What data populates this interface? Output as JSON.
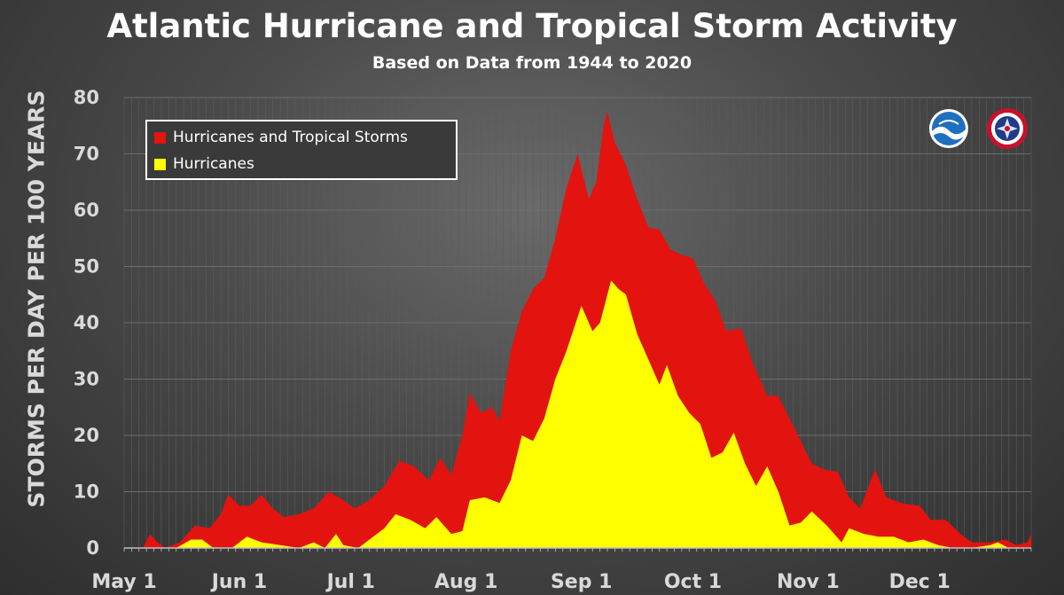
{
  "header": {
    "title": "Atlantic Hurricane and Tropical Storm Activity",
    "subtitle": "Based on Data from 1944 to 2020"
  },
  "logos": [
    {
      "name": "noaa-logo",
      "text": "NOAA",
      "colors": [
        "#1f6fbf",
        "#ffffff"
      ]
    },
    {
      "name": "nws-logo",
      "text": "NATIONAL WEATHER SERVICE",
      "colors": [
        "#c8102e",
        "#1f3c88"
      ]
    }
  ],
  "colors": {
    "hurricanes_and_tropical_storms": "#e3130f",
    "hurricanes": "#ffff00",
    "grid": "#6d6d6d",
    "tick_text": "#d9d9d9"
  },
  "chart_data": {
    "type": "area",
    "title": "Atlantic Hurricane and Tropical Storm Activity",
    "subtitle": "Based on Data from 1944 to 2020",
    "xlabel": "",
    "ylabel": "STORMS PER DAY PER 100 YEARS",
    "ylim": [
      0,
      80
    ],
    "yticks": [
      0,
      10,
      20,
      30,
      40,
      50,
      60,
      70,
      80
    ],
    "xlim": [
      "May 1",
      "Dec 31"
    ],
    "xticks": [
      {
        "label": "May 1",
        "date": "May 1"
      },
      {
        "label": "Jun 1",
        "date": "Jun 1"
      },
      {
        "label": "Jul 1",
        "date": "Jul 1"
      },
      {
        "label": "Aug 1",
        "date": "Aug 1"
      },
      {
        "label": "Sep 1",
        "date": "Sep 1"
      },
      {
        "label": "Oct 1",
        "date": "Oct 1"
      },
      {
        "label": "Nov 1",
        "date": "Nov 1"
      },
      {
        "label": "Dec 1",
        "date": "Dec 1"
      }
    ],
    "grid": true,
    "legend_position": "top-left",
    "series": [
      {
        "name": "Hurricanes and Tropical Storms",
        "color": "#e3130f",
        "points": [
          [
            "May 1",
            0
          ],
          [
            "May 6",
            0
          ],
          [
            "May 8",
            2.5
          ],
          [
            "May 10",
            1
          ],
          [
            "May 12",
            0
          ],
          [
            "May 16",
            1
          ],
          [
            "May 20",
            4
          ],
          [
            "May 24",
            3.5
          ],
          [
            "May 27",
            6
          ],
          [
            "May 29",
            9.5
          ],
          [
            "Jun 1",
            7.5
          ],
          [
            "Jun 4",
            7.5
          ],
          [
            "Jun 7",
            9.5
          ],
          [
            "Jun 10",
            7
          ],
          [
            "Jun 13",
            5.5
          ],
          [
            "Jun 17",
            6
          ],
          [
            "Jun 21",
            7
          ],
          [
            "Jun 25",
            10
          ],
          [
            "Jun 29",
            8.5
          ],
          [
            "Jul 2",
            7
          ],
          [
            "Jul 6",
            8.5
          ],
          [
            "Jul 10",
            11
          ],
          [
            "Jul 14",
            15.5
          ],
          [
            "Jul 18",
            14.5
          ],
          [
            "Jul 22",
            12
          ],
          [
            "Jul 25",
            16
          ],
          [
            "Jul 28",
            13
          ],
          [
            "Jul 31",
            20
          ],
          [
            "Aug 2",
            27.5
          ],
          [
            "Aug 5",
            24
          ],
          [
            "Aug 8",
            25
          ],
          [
            "Aug 10",
            22.5
          ],
          [
            "Aug 13",
            35
          ],
          [
            "Aug 16",
            42
          ],
          [
            "Aug 19",
            46
          ],
          [
            "Aug 22",
            48
          ],
          [
            "Aug 25",
            55
          ],
          [
            "Aug 28",
            64
          ],
          [
            "Aug 31",
            70
          ],
          [
            "Sep 3",
            62
          ],
          [
            "Sep 5",
            65
          ],
          [
            "Sep 7",
            75
          ],
          [
            "Sep 8",
            77.5
          ],
          [
            "Sep 10",
            72
          ],
          [
            "Sep 13",
            68
          ],
          [
            "Sep 16",
            62
          ],
          [
            "Sep 19",
            57
          ],
          [
            "Sep 22",
            56.5
          ],
          [
            "Sep 25",
            53
          ],
          [
            "Sep 28",
            52
          ],
          [
            "Oct 1",
            51.5
          ],
          [
            "Oct 4",
            47
          ],
          [
            "Oct 7",
            44
          ],
          [
            "Oct 10",
            38.5
          ],
          [
            "Oct 14",
            39
          ],
          [
            "Oct 17",
            33
          ],
          [
            "Oct 21",
            27
          ],
          [
            "Oct 24",
            27
          ],
          [
            "Oct 27",
            23
          ],
          [
            "Oct 30",
            19
          ],
          [
            "Nov 2",
            15
          ],
          [
            "Nov 5",
            14
          ],
          [
            "Nov 9",
            13.5
          ],
          [
            "Nov 12",
            9
          ],
          [
            "Nov 15",
            7
          ],
          [
            "Nov 19",
            14
          ],
          [
            "Nov 22",
            9
          ],
          [
            "Nov 26",
            8
          ],
          [
            "Dec 1",
            7.5
          ],
          [
            "Dec 4",
            5
          ],
          [
            "Dec 8",
            5
          ],
          [
            "Dec 12",
            2.5
          ],
          [
            "Dec 15",
            1
          ],
          [
            "Dec 20",
            1
          ],
          [
            "Dec 24",
            1.5
          ],
          [
            "Dec 27",
            0.5
          ],
          [
            "Dec 30",
            1
          ],
          [
            "Dec 31",
            2.5
          ]
        ]
      },
      {
        "name": "Hurricanes",
        "color": "#ffff00",
        "points": [
          [
            "May 1",
            0
          ],
          [
            "May 15",
            0
          ],
          [
            "May 19",
            1.5
          ],
          [
            "May 22",
            1.5
          ],
          [
            "May 25",
            0
          ],
          [
            "May 30",
            0
          ],
          [
            "Jun 3",
            2
          ],
          [
            "Jun 7",
            1
          ],
          [
            "Jun 12",
            0.5
          ],
          [
            "Jun 17",
            0
          ],
          [
            "Jun 21",
            1
          ],
          [
            "Jun 24",
            0
          ],
          [
            "Jun 27",
            2.5
          ],
          [
            "Jun 29",
            0.5
          ],
          [
            "Jul 3",
            0
          ],
          [
            "Jul 7",
            2
          ],
          [
            "Jul 10",
            3.5
          ],
          [
            "Jul 13",
            6
          ],
          [
            "Jul 17",
            5
          ],
          [
            "Jul 21",
            3.5
          ],
          [
            "Jul 24",
            5.5
          ],
          [
            "Jul 28",
            2.5
          ],
          [
            "Jul 31",
            3
          ],
          [
            "Aug 2",
            8.5
          ],
          [
            "Aug 6",
            9
          ],
          [
            "Aug 10",
            8
          ],
          [
            "Aug 13",
            12
          ],
          [
            "Aug 16",
            20
          ],
          [
            "Aug 19",
            19
          ],
          [
            "Aug 22",
            23
          ],
          [
            "Aug 25",
            30
          ],
          [
            "Aug 28",
            35
          ],
          [
            "Sep 1",
            43
          ],
          [
            "Sep 4",
            38.5
          ],
          [
            "Sep 6",
            40
          ],
          [
            "Sep 9",
            47.5
          ],
          [
            "Sep 11",
            46
          ],
          [
            "Sep 13",
            45
          ],
          [
            "Sep 16",
            38
          ],
          [
            "Sep 19",
            33.5
          ],
          [
            "Sep 22",
            29
          ],
          [
            "Sep 24",
            32.5
          ],
          [
            "Sep 27",
            27
          ],
          [
            "Sep 30",
            24
          ],
          [
            "Oct 3",
            22
          ],
          [
            "Oct 6",
            16
          ],
          [
            "Oct 9",
            17
          ],
          [
            "Oct 12",
            20.5
          ],
          [
            "Oct 15",
            15
          ],
          [
            "Oct 18",
            11
          ],
          [
            "Oct 21",
            14.5
          ],
          [
            "Oct 24",
            10
          ],
          [
            "Oct 27",
            4
          ],
          [
            "Oct 30",
            4.5
          ],
          [
            "Nov 2",
            6.5
          ],
          [
            "Nov 6",
            4
          ],
          [
            "Nov 10",
            1
          ],
          [
            "Nov 12",
            3.5
          ],
          [
            "Nov 16",
            2.5
          ],
          [
            "Nov 20",
            2
          ],
          [
            "Nov 24",
            2
          ],
          [
            "Nov 28",
            1
          ],
          [
            "Dec 2",
            1.5
          ],
          [
            "Dec 6",
            0.5
          ],
          [
            "Dec 10",
            0
          ],
          [
            "Dec 15",
            0
          ],
          [
            "Dec 20",
            0.5
          ],
          [
            "Dec 22",
            1
          ],
          [
            "Dec 25",
            0
          ],
          [
            "Dec 31",
            0
          ]
        ]
      }
    ]
  }
}
